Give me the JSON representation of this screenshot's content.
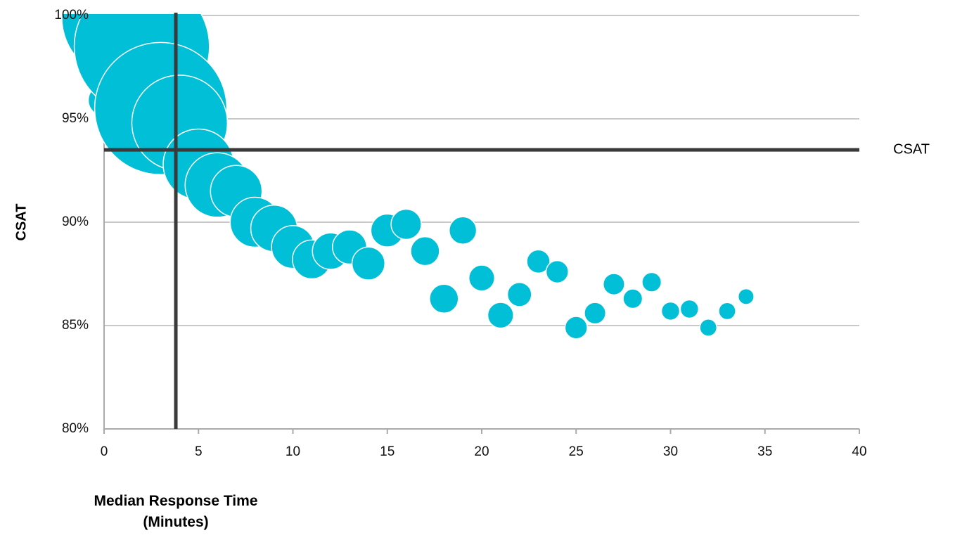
{
  "chart_data": {
    "type": "scatter",
    "subtype": "bubble",
    "title": "",
    "xlabel_line1": "Median Response Time",
    "xlabel_line2": "(Minutes)",
    "ylabel": "CSAT",
    "xlim": [
      0,
      40
    ],
    "ylim": [
      80,
      100
    ],
    "x_ticks": [
      0,
      5,
      10,
      15,
      20,
      25,
      30,
      35,
      40
    ],
    "x_tick_labels": [
      "0",
      "5",
      "10",
      "15",
      "20",
      "25",
      "30",
      "35",
      "40"
    ],
    "y_ticks": [
      80,
      85,
      90,
      95,
      100
    ],
    "y_tick_labels": [
      "80%",
      "85%",
      "90%",
      "95%",
      "100%"
    ],
    "grid": "horizontal",
    "bubble_color": "#00BFD6",
    "reference_line_color": "#3A3A3A",
    "grid_color": "#C8C8C8",
    "reference_lines": [
      {
        "orientation": "horizontal",
        "value": 93.5,
        "label": "CSAT"
      },
      {
        "orientation": "vertical",
        "value": 3.8,
        "label": ""
      }
    ],
    "points": [
      {
        "x": 0,
        "y": 95.9,
        "size": 1.2
      },
      {
        "x": 1,
        "y": 99.9,
        "size": 18
      },
      {
        "x": 2,
        "y": 98.5,
        "size": 22
      },
      {
        "x": 3,
        "y": 95.5,
        "size": 21
      },
      {
        "x": 4,
        "y": 94.8,
        "size": 11
      },
      {
        "x": 5,
        "y": 92.8,
        "size": 6
      },
      {
        "x": 6,
        "y": 91.8,
        "size": 5
      },
      {
        "x": 7,
        "y": 91.5,
        "size": 3.2
      },
      {
        "x": 8,
        "y": 90.0,
        "size": 3.0
      },
      {
        "x": 9,
        "y": 89.7,
        "size": 2.6
      },
      {
        "x": 10,
        "y": 88.8,
        "size": 2.2
      },
      {
        "x": 11,
        "y": 88.2,
        "size": 1.8
      },
      {
        "x": 12,
        "y": 88.6,
        "size": 1.6
      },
      {
        "x": 13,
        "y": 88.8,
        "size": 1.4
      },
      {
        "x": 14,
        "y": 88.0,
        "size": 1.3
      },
      {
        "x": 15,
        "y": 89.6,
        "size": 1.3
      },
      {
        "x": 16,
        "y": 89.9,
        "size": 1.1
      },
      {
        "x": 17,
        "y": 88.6,
        "size": 1.0
      },
      {
        "x": 18,
        "y": 86.3,
        "size": 1.0
      },
      {
        "x": 19,
        "y": 89.6,
        "size": 0.9
      },
      {
        "x": 20,
        "y": 87.3,
        "size": 0.8
      },
      {
        "x": 21,
        "y": 85.5,
        "size": 0.8
      },
      {
        "x": 22,
        "y": 86.5,
        "size": 0.7
      },
      {
        "x": 23,
        "y": 88.1,
        "size": 0.65
      },
      {
        "x": 24,
        "y": 87.6,
        "size": 0.6
      },
      {
        "x": 25,
        "y": 84.9,
        "size": 0.6
      },
      {
        "x": 26,
        "y": 85.6,
        "size": 0.55
      },
      {
        "x": 27,
        "y": 87.0,
        "size": 0.55
      },
      {
        "x": 28,
        "y": 86.3,
        "size": 0.45
      },
      {
        "x": 29,
        "y": 87.1,
        "size": 0.45
      },
      {
        "x": 30,
        "y": 85.7,
        "size": 0.4
      },
      {
        "x": 31,
        "y": 85.8,
        "size": 0.4
      },
      {
        "x": 32,
        "y": 84.9,
        "size": 0.35
      },
      {
        "x": 33,
        "y": 85.7,
        "size": 0.35
      },
      {
        "x": 34,
        "y": 86.4,
        "size": 0.3
      }
    ]
  }
}
